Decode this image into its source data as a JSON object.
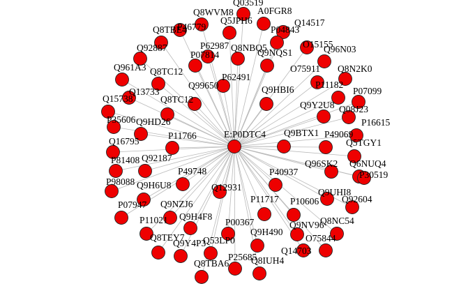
{
  "network": {
    "hub": {
      "id": "E:P0DTC4"
    },
    "nodes": [
      {
        "id": "Q8WVM8"
      },
      {
        "id": "Q03519"
      },
      {
        "id": "A0FGR8"
      },
      {
        "id": "P46779"
      },
      {
        "id": "Q5JPH6"
      },
      {
        "id": "Q14517"
      },
      {
        "id": "Q8TBE4"
      },
      {
        "id": "P04843"
      },
      {
        "id": "O15155"
      },
      {
        "id": "Q92887"
      },
      {
        "id": "P62987"
      },
      {
        "id": "Q8NBQ5"
      },
      {
        "id": "P07814"
      },
      {
        "id": "Q9NQS1"
      },
      {
        "id": "Q96N03"
      },
      {
        "id": "Q961A3"
      },
      {
        "id": "Q8TC12"
      },
      {
        "id": "O75911"
      },
      {
        "id": "Q8N2K0"
      },
      {
        "id": "P62491"
      },
      {
        "id": "Q13733"
      },
      {
        "id": "P11182"
      },
      {
        "id": "Q99650"
      },
      {
        "id": "Q9HBI6"
      },
      {
        "id": "P07099"
      },
      {
        "id": "Q15738"
      },
      {
        "id": "Q8TC12"
      },
      {
        "id": "Q9Y2U8"
      },
      {
        "id": "Q08J23"
      },
      {
        "id": "P35606"
      },
      {
        "id": "Q9HD26"
      },
      {
        "id": "P16615"
      },
      {
        "id": "P11766"
      },
      {
        "id": "Q9BTX1"
      },
      {
        "id": "P49069"
      },
      {
        "id": "Q16795"
      },
      {
        "id": "Q5TGY1"
      },
      {
        "id": "P81408"
      },
      {
        "id": "Q92187"
      },
      {
        "id": "Q96SK2"
      },
      {
        "id": "Q6NUQ4"
      },
      {
        "id": "P49748"
      },
      {
        "id": "P40937"
      },
      {
        "id": "P30519"
      },
      {
        "id": "P98088"
      },
      {
        "id": "Q9H6U8"
      },
      {
        "id": "Q12931"
      },
      {
        "id": "Q9UHI8"
      },
      {
        "id": "P07947"
      },
      {
        "id": "Q9NZJ6"
      },
      {
        "id": "P11717"
      },
      {
        "id": "P10606"
      },
      {
        "id": "Q92604"
      },
      {
        "id": "Q9H4F8"
      },
      {
        "id": "P11021"
      },
      {
        "id": "Q9NV96"
      },
      {
        "id": "Q8NC54"
      },
      {
        "id": "P00367"
      },
      {
        "id": "Q8TEY7"
      },
      {
        "id": "Q9H490"
      },
      {
        "id": "O75844"
      },
      {
        "id": "Q9Y4P3"
      },
      {
        "id": "Q53LP0"
      },
      {
        "id": "Q14703"
      },
      {
        "id": "Q8TBA6"
      },
      {
        "id": "P25685"
      },
      {
        "id": "Q8IUH4"
      }
    ]
  }
}
